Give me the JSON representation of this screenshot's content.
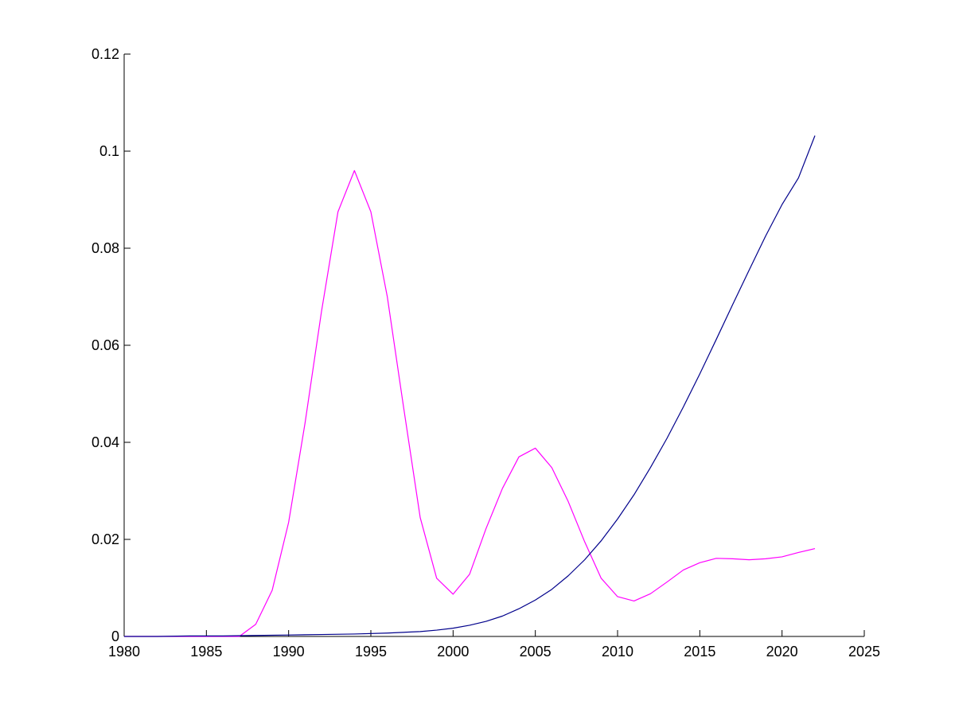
{
  "chart_data": {
    "type": "line",
    "title": "",
    "xlabel": "",
    "ylabel": "",
    "xlim": [
      1980,
      2025
    ],
    "ylim": [
      0,
      0.12
    ],
    "xticks": [
      "1980",
      "1985",
      "1990",
      "1995",
      "2000",
      "2005",
      "2010",
      "2015",
      "2020",
      "2025"
    ],
    "yticks": [
      "0",
      "0.02",
      "0.04",
      "0.06",
      "0.08",
      "0.1",
      "0.12"
    ],
    "grid": false,
    "legend": "none",
    "series": [
      {
        "color": "#ff00ff",
        "x": [
          1980,
          1981,
          1982,
          1983,
          1984,
          1985,
          1986,
          1987,
          1988,
          1989,
          1990,
          1991,
          1992,
          1993,
          1994,
          1995,
          1996,
          1997,
          1998,
          1999,
          2000,
          2001,
          2002,
          2003,
          2004,
          2005,
          2006,
          2007,
          2008,
          2009,
          2010,
          2011,
          2012,
          2013,
          2014,
          2015,
          2016,
          2017,
          2018,
          2019,
          2020,
          2021,
          2022
        ],
        "y": [
          0,
          0,
          0,
          0,
          0,
          0,
          0,
          0,
          0.0025,
          0.0095,
          0.0235,
          0.044,
          0.067,
          0.0875,
          0.096,
          0.0875,
          0.07,
          0.047,
          0.0245,
          0.012,
          0.0087,
          0.0128,
          0.0222,
          0.0305,
          0.037,
          0.0388,
          0.0348,
          0.0278,
          0.0195,
          0.012,
          0.0082,
          0.0073,
          0.0088,
          0.0112,
          0.0137,
          0.0152,
          0.0161,
          0.016,
          0.0158,
          0.016,
          0.0164,
          0.0173,
          0.0181
        ]
      },
      {
        "color": "#00008b",
        "x": [
          1980,
          1982,
          1984,
          1986,
          1988,
          1990,
          1992,
          1994,
          1996,
          1998,
          1999,
          2000,
          2001,
          2002,
          2003,
          2004,
          2005,
          2006,
          2007,
          2008,
          2009,
          2010,
          2011,
          2012,
          2013,
          2014,
          2015,
          2016,
          2017,
          2018,
          2019,
          2020,
          2021,
          2022
        ],
        "y": [
          0,
          0,
          0.0001,
          0.0001,
          0.0002,
          0.0003,
          0.0004,
          0.0005,
          0.0007,
          0.001,
          0.0013,
          0.0017,
          0.0023,
          0.0031,
          0.0042,
          0.0057,
          0.0075,
          0.0097,
          0.0125,
          0.0158,
          0.0197,
          0.0242,
          0.0292,
          0.0348,
          0.0408,
          0.0473,
          0.0541,
          0.0612,
          0.0684,
          0.0755,
          0.0825,
          0.089,
          0.0945,
          0.1032
        ]
      }
    ]
  }
}
